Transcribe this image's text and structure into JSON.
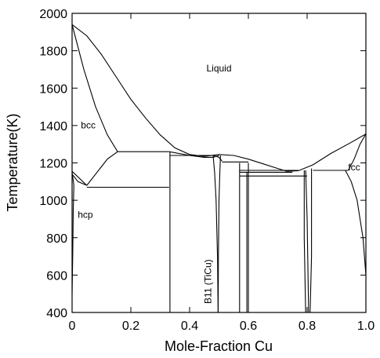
{
  "chart_data": {
    "type": "phase-diagram",
    "xlabel": "Mole-Fraction Cu",
    "ylabel": "Temperature(K)",
    "xlim": [
      0,
      1.0
    ],
    "ylim": [
      400,
      2000
    ],
    "x_ticks": [
      0,
      0.2,
      0.4,
      0.6,
      0.8,
      1.0
    ],
    "x_tick_labels": [
      "0",
      "0.2",
      "0.4",
      "0.6",
      "0.8",
      "1.0"
    ],
    "y_ticks": [
      400,
      600,
      800,
      1000,
      1200,
      1400,
      1600,
      1800,
      2000
    ],
    "y_tick_labels": [
      "400",
      "600",
      "800",
      "1000",
      "1200",
      "1400",
      "1600",
      "1800",
      "2000"
    ],
    "grid": false,
    "phase_labels": [
      {
        "text": "Liquid",
        "x": 0.5,
        "y": 1690
      },
      {
        "text": "bcc",
        "x": 0.055,
        "y": 1385
      },
      {
        "text": "hcp",
        "x": 0.045,
        "y": 905
      },
      {
        "text": "fcc",
        "x": 0.96,
        "y": 1160
      },
      {
        "text": "B11 (TiCu)",
        "x": 0.473,
        "y": 565,
        "rotate": -90
      }
    ],
    "boundaries": [
      {
        "name": "liquidus-left",
        "points": [
          [
            0,
            1940
          ],
          [
            0.05,
            1880
          ],
          [
            0.1,
            1780
          ],
          [
            0.15,
            1660
          ],
          [
            0.2,
            1540
          ],
          [
            0.25,
            1440
          ],
          [
            0.3,
            1350
          ],
          [
            0.35,
            1280
          ],
          [
            0.4,
            1245
          ],
          [
            0.45,
            1235
          ],
          [
            0.5,
            1245
          ]
        ]
      },
      {
        "name": "liquidus-right",
        "points": [
          [
            0.5,
            1245
          ],
          [
            0.55,
            1240
          ],
          [
            0.6,
            1220
          ],
          [
            0.65,
            1195
          ],
          [
            0.7,
            1170
          ],
          [
            0.73,
            1155
          ],
          [
            0.77,
            1158
          ],
          [
            0.82,
            1190
          ],
          [
            0.88,
            1250
          ],
          [
            0.95,
            1310
          ],
          [
            1.0,
            1355
          ]
        ]
      },
      {
        "name": "bcc-solidus",
        "points": [
          [
            0,
            1940
          ],
          [
            0.04,
            1700
          ],
          [
            0.08,
            1500
          ],
          [
            0.12,
            1350
          ],
          [
            0.155,
            1260
          ]
        ]
      },
      {
        "name": "bcc-hcp-upper",
        "points": [
          [
            0,
            1155
          ],
          [
            0.05,
            1080
          ]
        ]
      },
      {
        "name": "bcc-hcp-lower",
        "points": [
          [
            0.05,
            1080
          ],
          [
            0.08,
            1140
          ],
          [
            0.12,
            1220
          ],
          [
            0.155,
            1260
          ]
        ]
      },
      {
        "name": "hcp-solvus",
        "points": [
          [
            0,
            1150
          ],
          [
            0.006,
            1080
          ],
          [
            0.004,
            950
          ],
          [
            0.003,
            800
          ],
          [
            0.002,
            700
          ],
          [
            0.001,
            600
          ],
          [
            0,
            500
          ]
        ]
      },
      {
        "name": "hcp-edge",
        "points": [
          [
            0,
            1140
          ],
          [
            0.02,
            1100
          ],
          [
            0.05,
            1080
          ]
        ]
      },
      {
        "name": "eutectoid",
        "points": [
          [
            0.05,
            1070
          ],
          [
            0.33,
            1070
          ]
        ]
      },
      {
        "name": "peritectic-1",
        "points": [
          [
            0.155,
            1260
          ],
          [
            0.33,
            1260
          ]
        ]
      },
      {
        "name": "liquid-bcc-cap",
        "points": [
          [
            0.33,
            1260
          ],
          [
            0.4,
            1240
          ],
          [
            0.45,
            1230
          ],
          [
            0.48,
            1230
          ],
          [
            0.5,
            1240
          ]
        ]
      },
      {
        "name": "ti2cu-line",
        "points": [
          [
            0.333,
            400
          ],
          [
            0.333,
            1260
          ]
        ]
      },
      {
        "name": "ti2cu-top",
        "points": [
          [
            0.333,
            1240
          ],
          [
            0.48,
            1240
          ]
        ]
      },
      {
        "name": "ticu-left",
        "points": [
          [
            0.48,
            1240
          ],
          [
            0.485,
            1150
          ],
          [
            0.49,
            1000
          ],
          [
            0.495,
            700
          ],
          [
            0.497,
            400
          ]
        ]
      },
      {
        "name": "ticu-right",
        "points": [
          [
            0.505,
            1240
          ],
          [
            0.503,
            1150
          ],
          [
            0.5,
            1000
          ],
          [
            0.498,
            700
          ],
          [
            0.497,
            400
          ]
        ]
      },
      {
        "name": "ticu-bottom",
        "points": [
          [
            0.48,
            1240
          ],
          [
            0.5,
            1230
          ],
          [
            0.51,
            1210
          ]
        ]
      },
      {
        "name": "plateau-1",
        "points": [
          [
            0.51,
            1205
          ],
          [
            0.6,
            1205
          ]
        ]
      },
      {
        "name": "plateau-2",
        "points": [
          [
            0.57,
            1160
          ],
          [
            0.77,
            1160
          ]
        ]
      },
      {
        "name": "plateau-3",
        "points": [
          [
            0.57,
            1150
          ],
          [
            0.75,
            1150
          ]
        ]
      },
      {
        "name": "plateau-4",
        "points": [
          [
            0.57,
            1130
          ],
          [
            0.8,
            1130
          ]
        ]
      },
      {
        "name": "compound-a",
        "points": [
          [
            0.57,
            400
          ],
          [
            0.57,
            1200
          ]
        ]
      },
      {
        "name": "compound-b",
        "points": [
          [
            0.6,
            400
          ],
          [
            0.6,
            1200
          ]
        ]
      },
      {
        "name": "compound-c",
        "points": [
          [
            0.595,
            1150
          ],
          [
            0.595,
            400
          ]
        ]
      },
      {
        "name": "compound-d-left",
        "points": [
          [
            0.79,
            1160
          ],
          [
            0.79,
            800
          ],
          [
            0.795,
            400
          ]
        ]
      },
      {
        "name": "compound-d-right",
        "points": [
          [
            0.795,
            1160
          ],
          [
            0.8,
            900
          ],
          [
            0.805,
            400
          ]
        ]
      },
      {
        "name": "compound-d-right2",
        "points": [
          [
            0.815,
            1170
          ],
          [
            0.815,
            700
          ],
          [
            0.81,
            400
          ]
        ]
      },
      {
        "name": "fcc-plateau",
        "points": [
          [
            0.82,
            1160
          ],
          [
            0.94,
            1160
          ]
        ]
      },
      {
        "name": "fcc-solvus",
        "points": [
          [
            1.0,
            600
          ],
          [
            0.99,
            800
          ],
          [
            0.98,
            900
          ],
          [
            0.97,
            1000
          ],
          [
            0.95,
            1100
          ],
          [
            0.93,
            1160
          ]
        ]
      },
      {
        "name": "fcc-solidus",
        "points": [
          [
            1.0,
            1355
          ],
          [
            0.98,
            1300
          ],
          [
            0.96,
            1220
          ],
          [
            0.94,
            1160
          ]
        ]
      }
    ]
  }
}
